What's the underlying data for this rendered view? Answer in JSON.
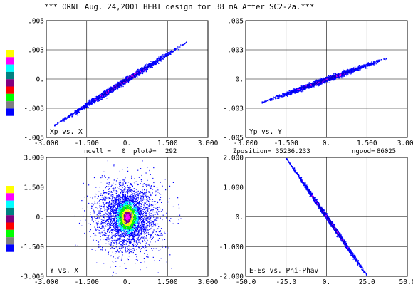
{
  "title": "*** ORNL Aug. 24,2001 HEBT design for 38 mA After SC2-2a.***",
  "info": {
    "ncell_label": "ncell =",
    "ncell_value": "0",
    "plot_label": "plot#=",
    "plot_value": "292",
    "zposition_label": "Zposition=",
    "zposition_value": "35236.233",
    "ngood_label": "ngood=",
    "ngood_value": "86025"
  },
  "colors": {
    "density_scale": [
      "#ffff00",
      "#ff00ff",
      "#00ffff",
      "#008080",
      "#800080",
      "#ff0000",
      "#00ff00",
      "#808080",
      "#0000ff"
    ],
    "particle": "#0000ff",
    "axis": "#000000",
    "grid": "#000000"
  },
  "chart_data": [
    {
      "id": "xp-x",
      "type": "scatter",
      "label": "Xp vs. X",
      "xlim": [
        -3.0,
        3.0
      ],
      "ylim": [
        -0.005,
        0.005
      ],
      "xticks": [
        "-3.000",
        "-1.500",
        "0.",
        "1.500",
        "3.000"
      ],
      "yticks": [
        ".005",
        ".003",
        "0.",
        "-.003",
        "-.005"
      ],
      "grid": true,
      "shape": "tilted-ellipse",
      "slope": 0.00145,
      "x_extent": [
        -2.7,
        2.2
      ],
      "spread": 0.00018
    },
    {
      "id": "yp-y",
      "type": "scatter",
      "label": "Yp vs. Y",
      "xlim": [
        -3.0,
        3.0
      ],
      "ylim": [
        -0.005,
        0.005
      ],
      "xticks": [
        "-3.000",
        "-1.500",
        "0.",
        "1.500",
        "3.000"
      ],
      "yticks": [
        ".005",
        ".003",
        "0.",
        "-.003",
        "-.005"
      ],
      "grid": true,
      "shape": "tilted-ellipse",
      "slope": 0.00082,
      "x_extent": [
        -2.4,
        2.2
      ],
      "spread": 0.00015
    },
    {
      "id": "y-x",
      "type": "scatter",
      "label": "Y vs. X",
      "xlim": [
        -3.0,
        3.0
      ],
      "ylim": [
        -3.0,
        3.0
      ],
      "xticks": [
        "-3.000",
        "-1.500",
        "0.",
        "1.500",
        "3.000"
      ],
      "yticks": [
        "3.000",
        "1.500",
        "0.",
        "-1.500",
        "-3.000"
      ],
      "grid": true,
      "shape": "gaussian-halo",
      "core_sigma": [
        0.15,
        0.3
      ],
      "halo_sigma": [
        0.6,
        0.9
      ]
    },
    {
      "id": "ees-phi",
      "type": "scatter",
      "label": "E-Es vs. Phi-Phav",
      "xlim": [
        -50.0,
        50.0
      ],
      "ylim": [
        -2.0,
        2.0
      ],
      "xticks": [
        "-50.0",
        "-25.0",
        "0.",
        "25.0",
        "50.0"
      ],
      "yticks": [
        "2.000",
        "1.000",
        "0.",
        "-1.000",
        "-2.000"
      ],
      "grid": true,
      "shape": "tilted-ellipse",
      "slope": -0.079,
      "x_extent": [
        -25.0,
        28.0
      ],
      "spread": 0.06
    }
  ]
}
